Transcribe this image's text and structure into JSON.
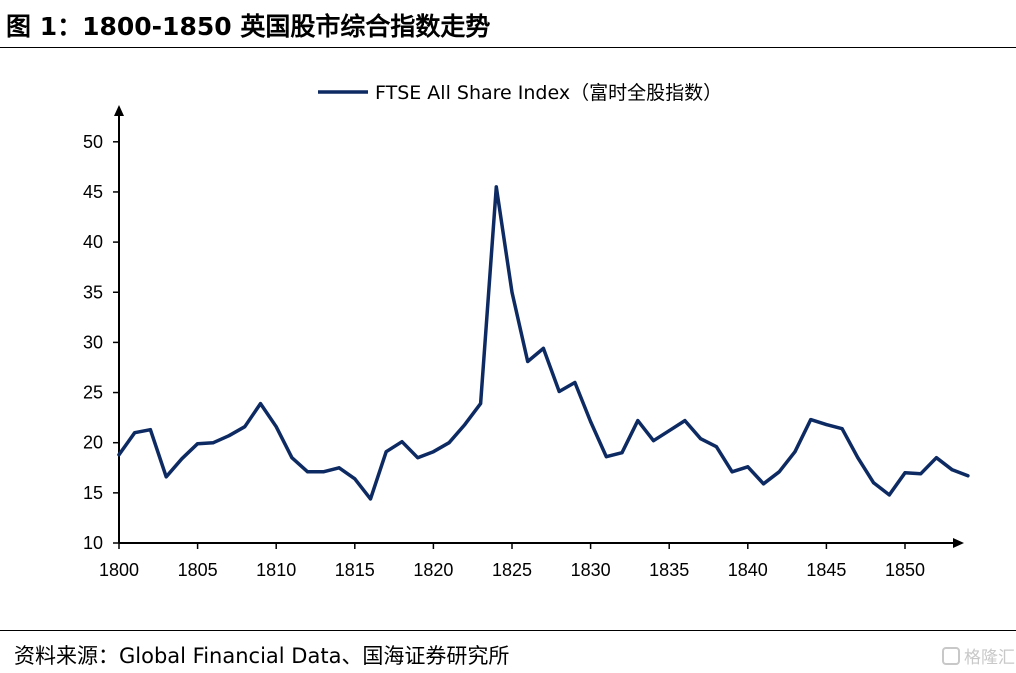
{
  "header": {
    "title": "图 1：1800-1850  英国股市综合指数走势"
  },
  "footer": {
    "source": "资料来源：Global Financial Data、国海证券研究所",
    "watermark": "格隆汇"
  },
  "colors": {
    "series": "#0d2a63",
    "axis": "#000000"
  },
  "chart_data": {
    "type": "line",
    "title": "图 1：1800-1850  英国股市综合指数走势",
    "xlabel": "",
    "ylabel": "",
    "xlim": [
      1800,
      1854
    ],
    "ylim": [
      10,
      52
    ],
    "xticks": [
      1800,
      1805,
      1810,
      1815,
      1820,
      1825,
      1830,
      1835,
      1840,
      1845,
      1850
    ],
    "yticks": [
      10,
      15,
      20,
      25,
      30,
      35,
      40,
      45,
      50
    ],
    "grid": false,
    "legend": "top-center",
    "series": [
      {
        "name": "FTSE All Share Index（富时全股指数）",
        "x": [
          1800,
          1801,
          1802,
          1803,
          1804,
          1805,
          1806,
          1807,
          1808,
          1809,
          1810,
          1811,
          1812,
          1813,
          1814,
          1815,
          1816,
          1817,
          1818,
          1819,
          1820,
          1821,
          1822,
          1823,
          1824,
          1825,
          1826,
          1827,
          1828,
          1829,
          1830,
          1831,
          1832,
          1833,
          1834,
          1835,
          1836,
          1837,
          1838,
          1839,
          1840,
          1841,
          1842,
          1843,
          1844,
          1845,
          1846,
          1847,
          1848,
          1849,
          1850,
          1851,
          1852,
          1853,
          1854
        ],
        "values": [
          18.8,
          21.0,
          21.3,
          16.6,
          18.4,
          19.9,
          20.0,
          20.7,
          21.6,
          23.9,
          21.6,
          18.5,
          17.1,
          17.1,
          17.5,
          16.4,
          14.4,
          19.1,
          20.1,
          18.5,
          19.1,
          20.0,
          21.8,
          23.9,
          45.5,
          35.0,
          28.1,
          29.4,
          25.1,
          26.0,
          22.1,
          18.6,
          19.0,
          22.2,
          20.2,
          21.2,
          22.2,
          20.4,
          19.6,
          17.1,
          17.6,
          15.9,
          17.1,
          19.1,
          22.3,
          21.8,
          21.4,
          18.5,
          16.0,
          14.8,
          17.0,
          16.9,
          18.5,
          17.3,
          16.7
        ]
      }
    ]
  }
}
